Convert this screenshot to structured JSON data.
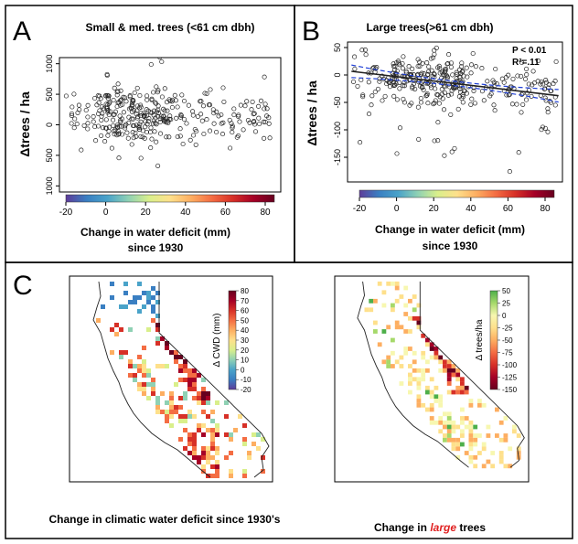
{
  "colors": {
    "cwd_ramp": [
      "#5e3c99",
      "#3a7fc2",
      "#4aa3c9",
      "#8fd1b4",
      "#d9ef8b",
      "#fee08b",
      "#fdae61",
      "#f46d43",
      "#d73027",
      "#a50026",
      "#67001f"
    ],
    "trees_ramp": [
      "#4daf4a",
      "#a6d96a",
      "#f7f7b0",
      "#fee08b",
      "#fdae61",
      "#f46d43",
      "#d73027",
      "#a50026",
      "#67001f"
    ],
    "fit_line": "#222222",
    "ci_line": "#1f3fd6"
  },
  "panels": {
    "a": {
      "letter": "A",
      "title": "Small & med. trees (<61 cm dbh)",
      "ylabel": "Δtrees / ha",
      "xlabel_line1": "Change in water deficit (mm)",
      "xlabel_line2": "since 1930"
    },
    "b": {
      "letter": "B",
      "title": "Large trees(>61 cm dbh)",
      "ylabel": "Δtrees / ha",
      "xlabel_line1": "Change in water deficit (mm)",
      "xlabel_line2": "since 1930",
      "stat_p": "P < 0.01",
      "stat_r2": "R²=.11"
    },
    "c": {
      "letter": "C",
      "map_left_caption": "Change in climatic water deficit since 1930's",
      "map_right_caption_pre": "Change in ",
      "map_right_caption_em": "large",
      "map_right_caption_post": " trees",
      "legend_left_title": "Δ CWD (mm)",
      "legend_left_ticks": [
        "80",
        "70",
        "60",
        "50",
        "40",
        "30",
        "20",
        "10",
        "0",
        "-10",
        "-20"
      ],
      "legend_right_title": "Δ trees/ha",
      "legend_right_ticks": [
        "50",
        "25",
        "0",
        "-25",
        "-50",
        "-75",
        "-100",
        "-125",
        "-150"
      ]
    }
  },
  "chart_data": [
    {
      "type": "scatter",
      "title": "Small & med. trees (<61 cm dbh)",
      "xlabel": "Change in water deficit (mm) since 1930",
      "ylabel": "Δtrees / ha",
      "xlim": [
        -25,
        85
      ],
      "ylim": [
        -1100,
        1100
      ],
      "x_ticks": [
        "-20",
        "0",
        "20",
        "40",
        "60",
        "80"
      ],
      "y_ticks": [
        "1000",
        "500",
        "0",
        "-500",
        "-1000"
      ],
      "y_tick_labels": [
        "1000",
        "500",
        "0",
        "500",
        "1000"
      ],
      "colorbar_range": [
        -20,
        80
      ],
      "n_points": 330,
      "x_range_observed": [
        -22,
        80
      ],
      "y_center": 150,
      "y_spread": 220
    },
    {
      "type": "scatter",
      "title": "Large trees(>61 cm dbh)",
      "xlabel": "Change in water deficit (mm) since 1930",
      "ylabel": "Δtrees / ha",
      "xlim": [
        -25,
        85
      ],
      "ylim": [
        -195,
        60
      ],
      "x_ticks": [
        "-20",
        "0",
        "20",
        "40",
        "60",
        "80"
      ],
      "y_ticks": [
        "50",
        "0",
        "-50",
        "-100",
        "-150"
      ],
      "colorbar_range": [
        -20,
        80
      ],
      "n_points": 330,
      "x_range_observed": [
        -22,
        82
      ],
      "fit": {
        "intercept": -3,
        "slope": -0.42
      },
      "ci_halfwidth_ends": 12,
      "ci_halfwidth_mid": 4,
      "p_value": "P < 0.01",
      "r_squared": "R²=.11"
    }
  ]
}
